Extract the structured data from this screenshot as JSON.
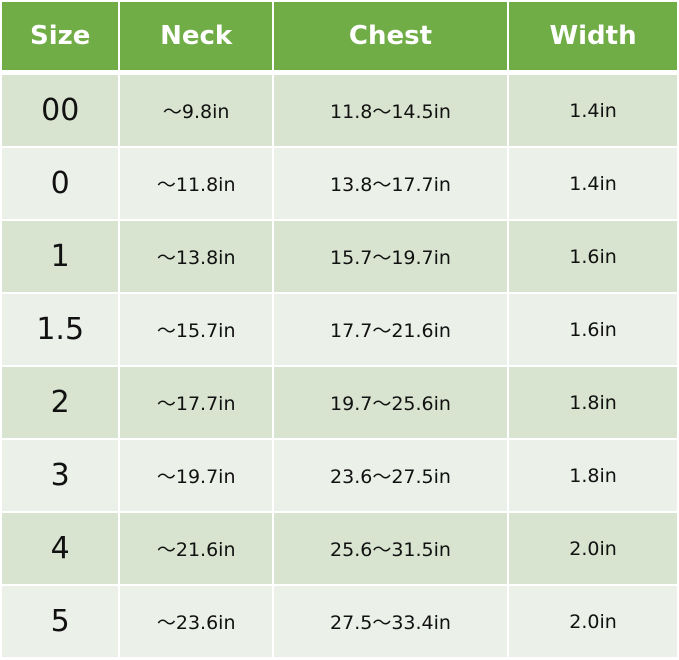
{
  "headers": [
    "Size",
    "Neck",
    "Chest",
    "Width"
  ],
  "rows": [
    [
      "00",
      "〜9.8in",
      "11.8〜14.5in",
      "1.4in"
    ],
    [
      "0",
      "〜11.8in",
      "13.8〜17.7in",
      "1.4in"
    ],
    [
      "1",
      "〜13.8in",
      "15.7〜19.7in",
      "1.6in"
    ],
    [
      "1.5",
      "〜15.7in",
      "17.7〜21.6in",
      "1.6in"
    ],
    [
      "2",
      "〜17.7in",
      "19.7〜25.6in",
      "1.8in"
    ],
    [
      "3",
      "〜19.7in",
      "23.6〜27.5in",
      "1.8in"
    ],
    [
      "4",
      "〜21.6in",
      "25.6〜31.5in",
      "2.0in"
    ],
    [
      "5",
      "〜23.6in",
      "27.5〜33.4in",
      "2.0in"
    ]
  ],
  "colors": {
    "header": "#70AD47",
    "row_dark": "#D8E4CF",
    "row_light": "#EBF0E8"
  }
}
